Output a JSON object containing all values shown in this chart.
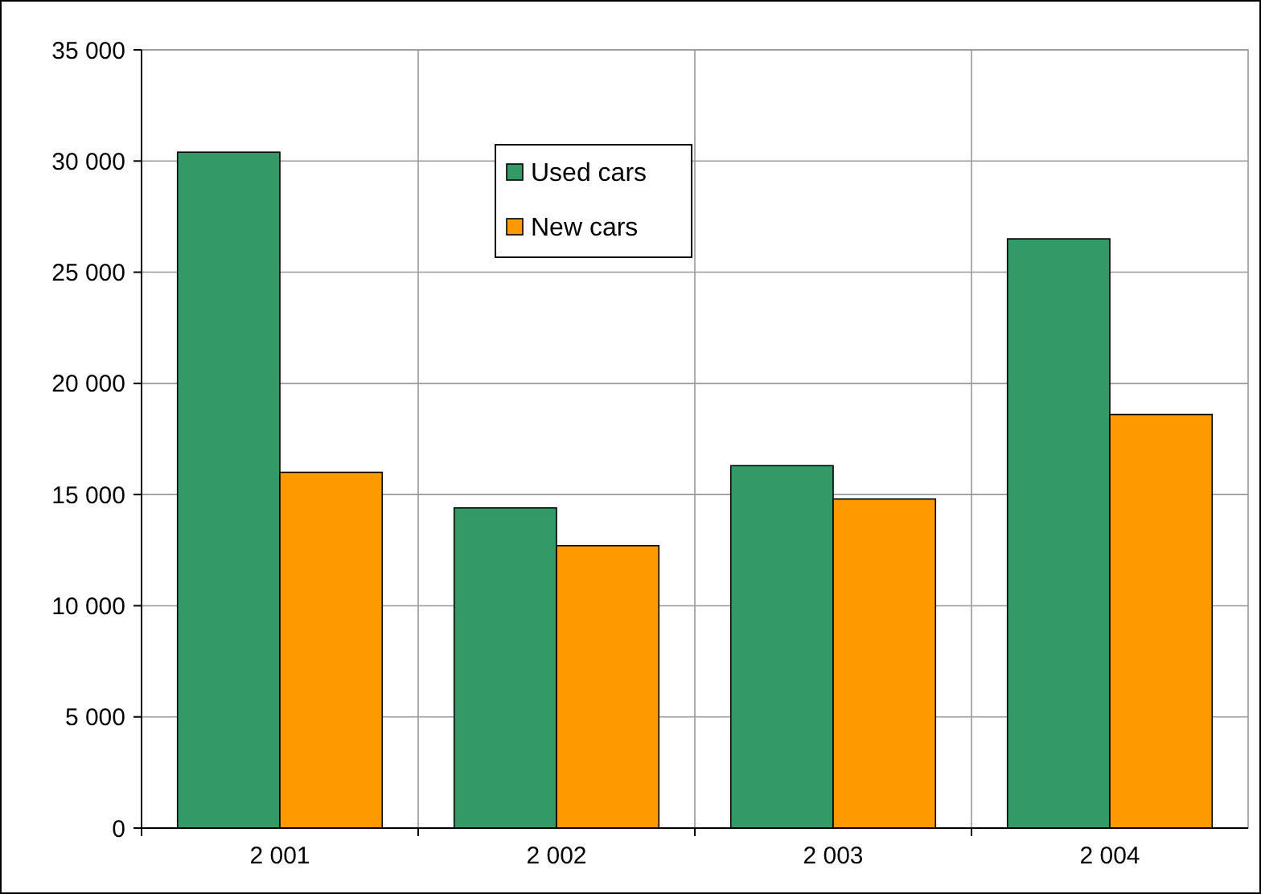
{
  "chart_data": {
    "type": "bar",
    "categories": [
      "2 001",
      "2 002",
      "2 003",
      "2 004"
    ],
    "series": [
      {
        "name": "Used cars",
        "color": "#339966",
        "values": [
          30400,
          14400,
          16300,
          26500
        ]
      },
      {
        "name": "New cars",
        "color": "#ff9900",
        "values": [
          16000,
          12700,
          14800,
          18600
        ]
      }
    ],
    "ylim": [
      0,
      35000
    ],
    "yticks": [
      0,
      {
        "value": 5000,
        "label": "5 000"
      },
      {
        "value": 10000,
        "label": "10 000"
      },
      {
        "value": 15000,
        "label": "15 000"
      },
      {
        "value": 20000,
        "label": "20 000"
      },
      {
        "value": 25000,
        "label": "25 000"
      },
      {
        "value": 30000,
        "label": "30 000"
      },
      {
        "value": 35000,
        "label": "35 000"
      }
    ],
    "grid": true,
    "legend": "top"
  }
}
